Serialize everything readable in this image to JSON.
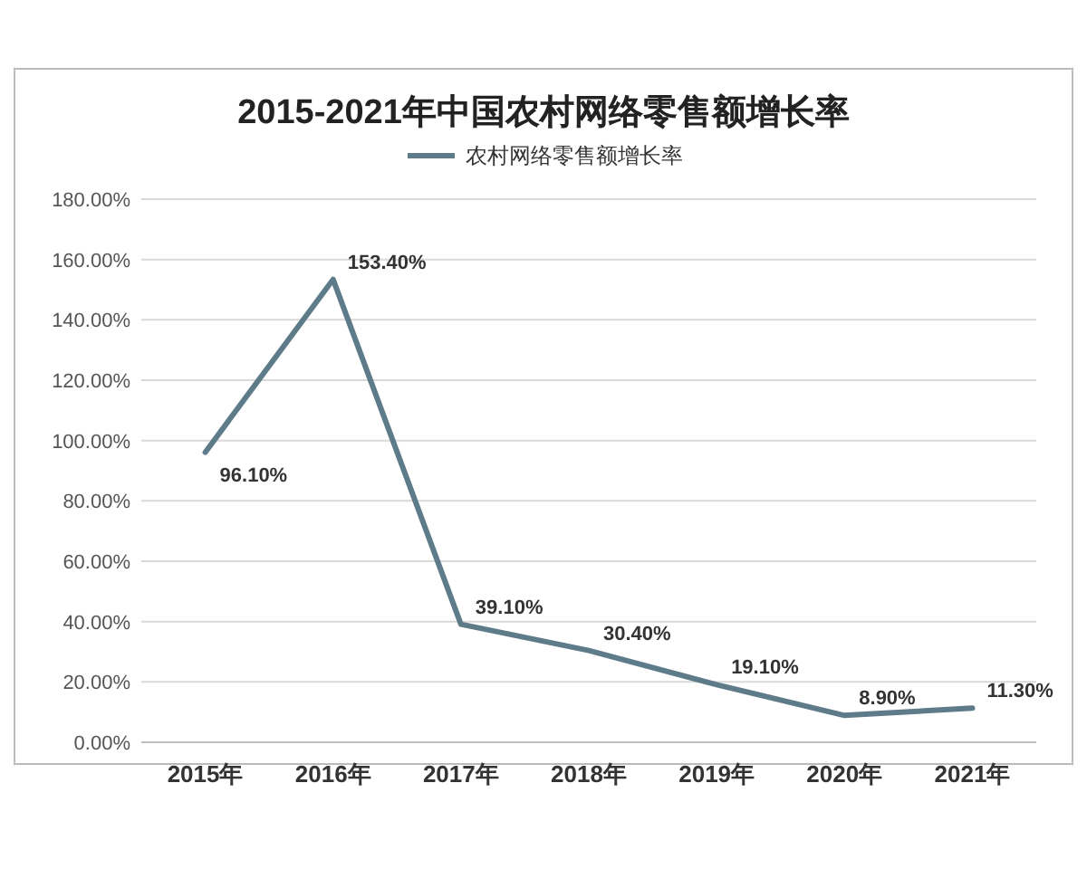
{
  "chart_data": {
    "type": "line",
    "title": "2015-2021年中国农村网络零售额增长率",
    "categories": [
      "2015年",
      "2016年",
      "2017年",
      "2018年",
      "2019年",
      "2020年",
      "2021年"
    ],
    "series": [
      {
        "name": "农村网络零售额增长率",
        "color": "#5e7b89",
        "values": [
          96.1,
          153.4,
          39.1,
          30.4,
          19.1,
          8.9,
          11.3
        ],
        "value_labels": [
          "96.10%",
          "153.40%",
          "39.10%",
          "30.40%",
          "19.10%",
          "8.90%",
          "11.30%"
        ]
      }
    ],
    "ylim": [
      0,
      180
    ],
    "yticks": [
      {
        "value": 0,
        "label": "0.00%"
      },
      {
        "value": 20,
        "label": "20.00%"
      },
      {
        "value": 40,
        "label": "40.00%"
      },
      {
        "value": 60,
        "label": "60.00%"
      },
      {
        "value": 80,
        "label": "80.00%"
      },
      {
        "value": 100,
        "label": "100.00%"
      },
      {
        "value": 120,
        "label": "120.00%"
      },
      {
        "value": 140,
        "label": "140.00%"
      },
      {
        "value": 160,
        "label": "160.00%"
      },
      {
        "value": 180,
        "label": "180.00%"
      }
    ],
    "grid": "y",
    "legend": "top",
    "line_style": "solid",
    "marker": "none"
  }
}
